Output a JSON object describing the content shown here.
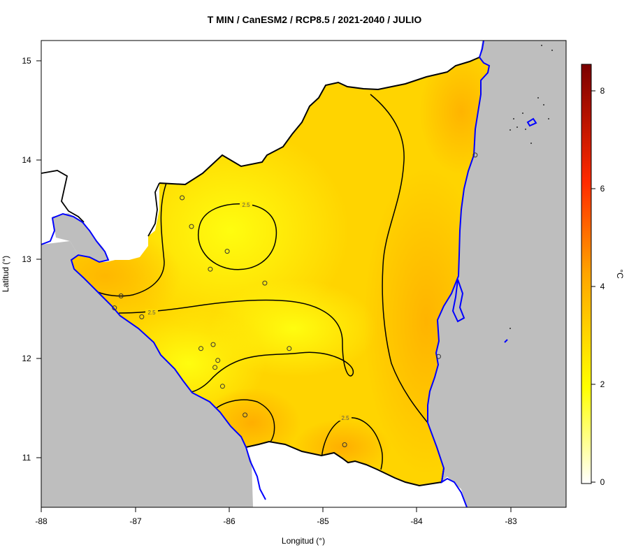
{
  "title": "T MIN / CanESM2 / RCP8.5 / 2021-2040 / JULIO",
  "axes": {
    "xlabel": "Longitud (°)",
    "ylabel": "Latitud (°)",
    "xticks": [
      "-88",
      "-87",
      "-86",
      "-85",
      "-84",
      "-83"
    ],
    "yticks": [
      "15",
      "14",
      "13",
      "12",
      "11"
    ]
  },
  "colorbar": {
    "unit": "°C",
    "ticks": [
      "8",
      "6",
      "4",
      "2",
      "0"
    ],
    "range": [
      0,
      8.6
    ]
  },
  "colors": {
    "sea": "#bebebe",
    "land_outside": "#ffffff",
    "coast": "#0000ff",
    "border": "#000000",
    "field_high": "#ffb000",
    "field_mid": "#ffd400",
    "field_low": "#ffff00"
  },
  "contour_labels": [
    "2.5",
    "2.5",
    "2.5"
  ],
  "chart_data": {
    "type": "heatmap",
    "title": "T MIN / CanESM2 / RCP8.5 / 2021-2040 / JULIO",
    "xlabel": "Longitud (°)",
    "ylabel": "Latitud (°)",
    "xlim": [
      -88,
      -82.4
    ],
    "ylim": [
      10.5,
      15.2
    ],
    "legend": "right",
    "contour_levels": [
      2.5
    ],
    "stations": [
      {
        "lon": -86.5,
        "lat": 13.62
      },
      {
        "lon": -86.4,
        "lat": 13.33
      },
      {
        "lon": -86.02,
        "lat": 13.08
      },
      {
        "lon": -86.2,
        "lat": 12.9
      },
      {
        "lon": -85.62,
        "lat": 12.76
      },
      {
        "lon": -87.15,
        "lat": 12.63
      },
      {
        "lon": -87.22,
        "lat": 12.51
      },
      {
        "lon": -86.93,
        "lat": 12.42
      },
      {
        "lon": -86.3,
        "lat": 12.1
      },
      {
        "lon": -86.17,
        "lat": 12.14
      },
      {
        "lon": -85.36,
        "lat": 12.1
      },
      {
        "lon": -86.12,
        "lat": 11.98
      },
      {
        "lon": -86.15,
        "lat": 11.91
      },
      {
        "lon": -86.07,
        "lat": 11.72
      },
      {
        "lon": -85.83,
        "lat": 11.43
      },
      {
        "lon": -84.77,
        "lat": 11.13
      },
      {
        "lon": -83.77,
        "lat": 12.02
      },
      {
        "lon": -83.38,
        "lat": 14.05
      }
    ]
  }
}
